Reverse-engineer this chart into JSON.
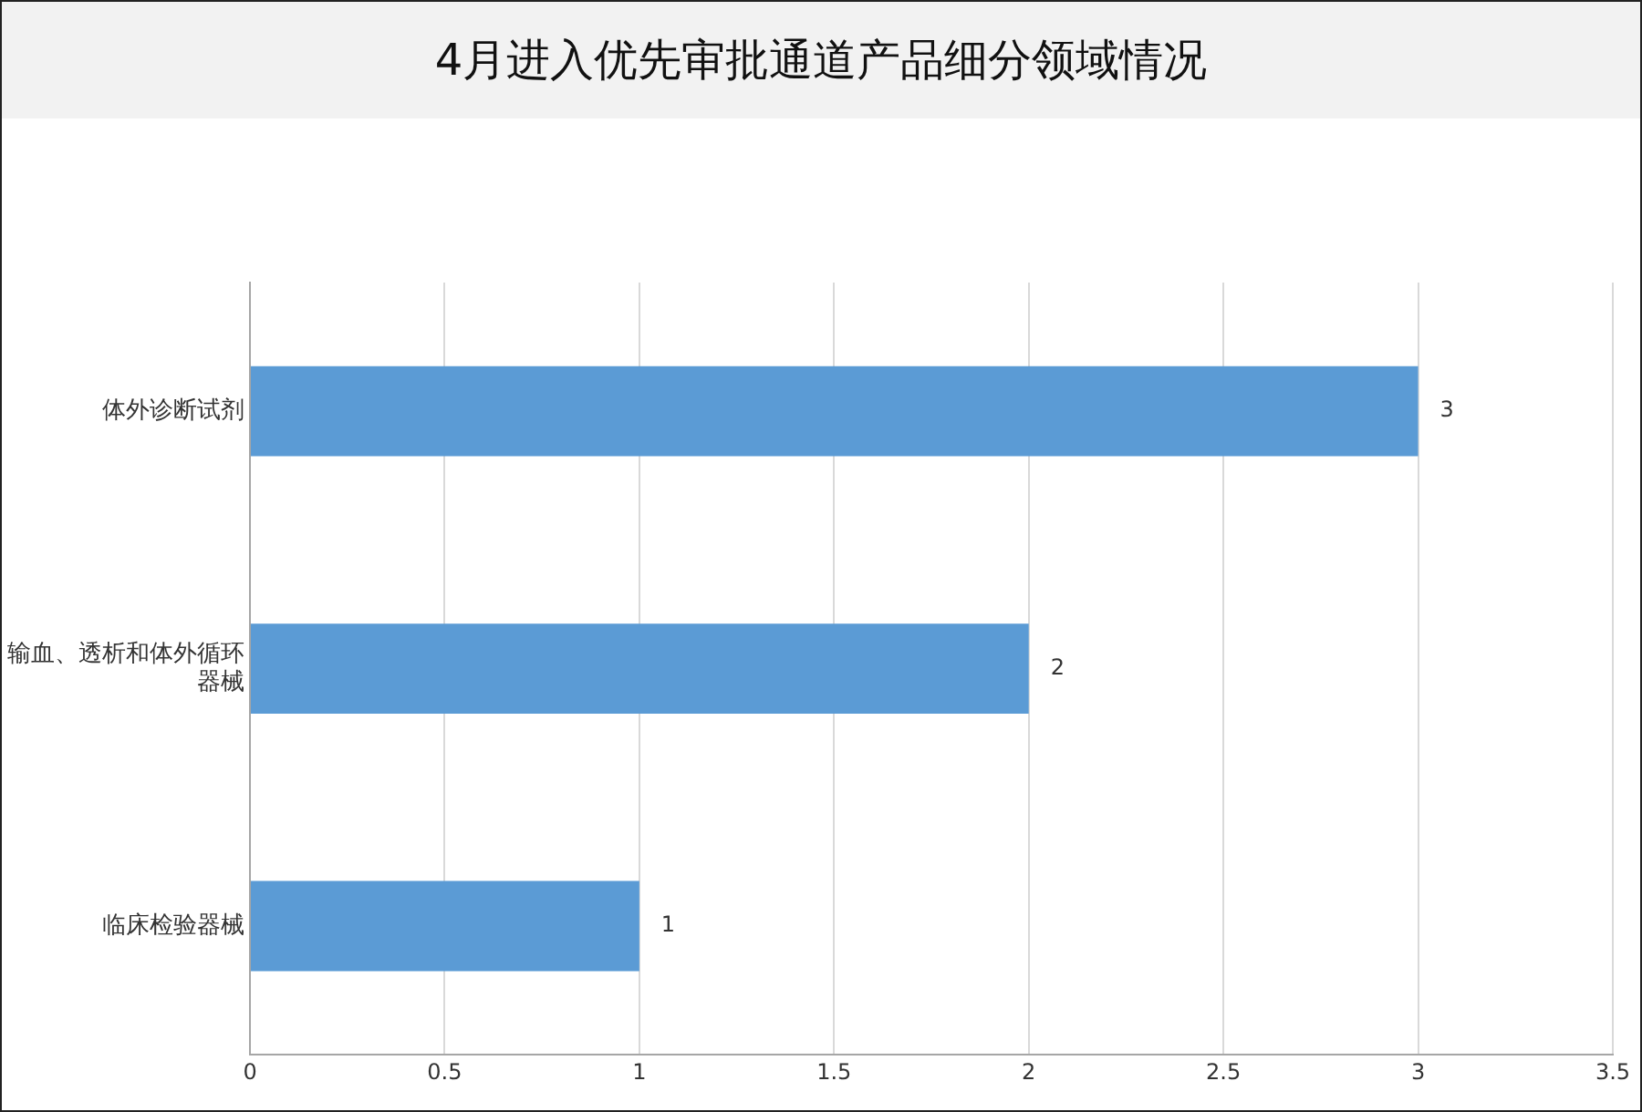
{
  "chart_data": {
    "type": "bar",
    "orientation": "horizontal",
    "title": "4月进入优先审批通道产品细分领域情况",
    "categories": [
      "体外诊断试剂",
      "输血、透析和体外循环器械",
      "临床检验器械"
    ],
    "values": [
      3,
      2,
      1
    ],
    "color": "#5b9bd5",
    "xlim": [
      0,
      3.5
    ],
    "xticks": [
      0,
      0.5,
      1,
      1.5,
      2,
      2.5,
      3,
      3.5
    ],
    "grid": "x",
    "legend": false,
    "data_labels": true
  }
}
